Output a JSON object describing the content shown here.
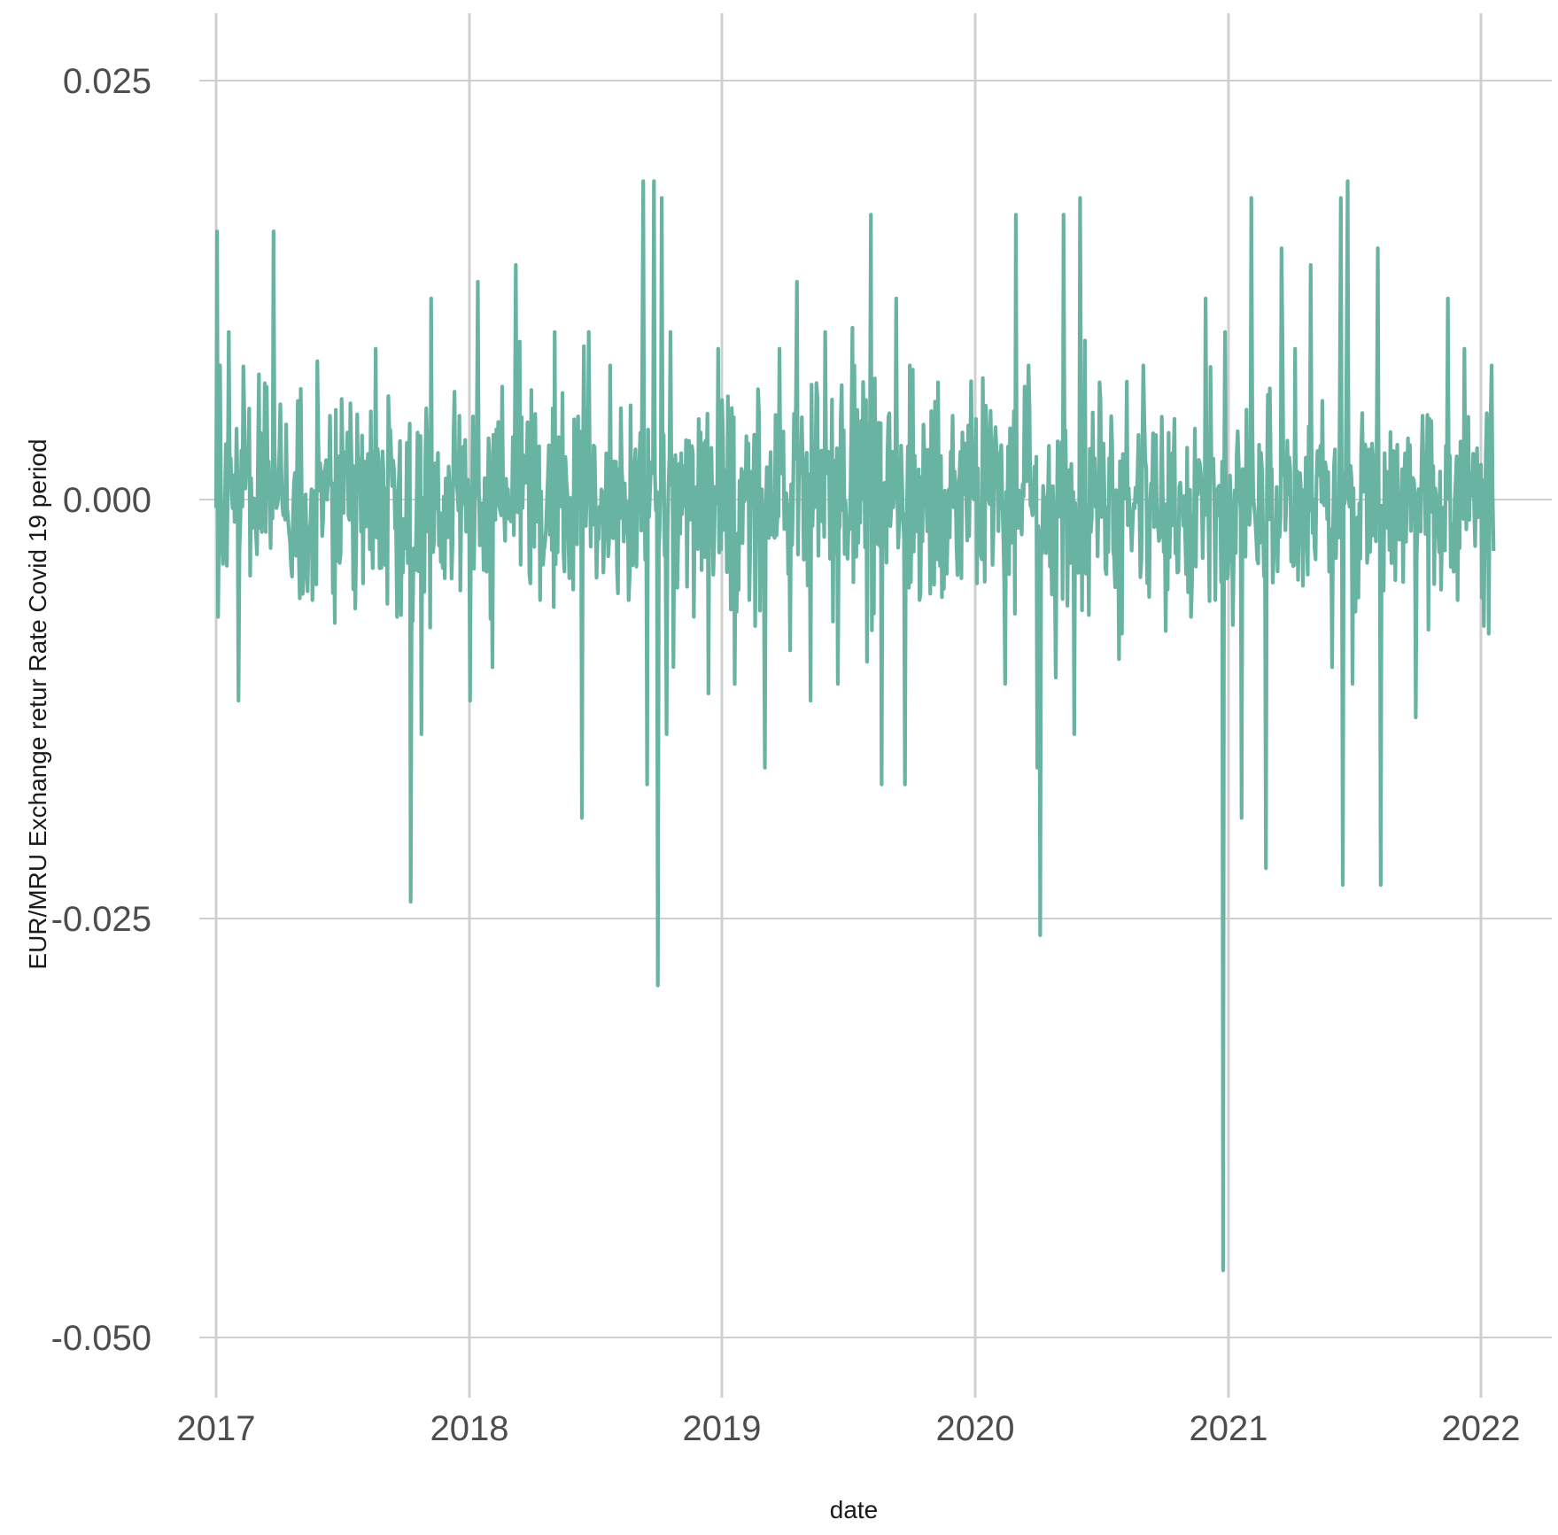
{
  "chart_data": {
    "type": "line",
    "title": "",
    "xlabel": "date",
    "ylabel": "EUR/MRU Exchange retur Rate Covid 19 period",
    "x_range": [
      "2017-01-01",
      "2022-01-20"
    ],
    "ylim": [
      -0.0535,
      0.0285
    ],
    "x_ticks": [
      "2017",
      "2018",
      "2019",
      "2020",
      "2021",
      "2022"
    ],
    "y_ticks": [
      "0.025",
      "0.000",
      "-0.025",
      "-0.050"
    ],
    "y_tick_values": [
      0.025,
      0.0,
      -0.025,
      -0.05
    ],
    "grid": true,
    "legend": "none",
    "line_color": "#69b3a2",
    "series": [
      {
        "date": [
          "2017-01-03",
          "2017-01-05",
          "2017-01-07",
          "2017-01-20",
          "2017-02-03",
          "2017-02-12",
          "2017-03-25",
          "2017-05-21",
          "2017-06-15",
          "2017-07-02",
          "2017-08-02",
          "2017-08-20",
          "2017-09-20",
          "2017-10-10",
          "2017-10-20",
          "2017-10-25",
          "2017-11-08",
          "2017-11-23",
          "2017-12-19",
          "2018-01-04",
          "2018-01-15",
          "2018-02-05",
          "2018-03-10",
          "2018-03-31",
          "2018-04-15",
          "2018-05-06",
          "2018-06-14",
          "2018-06-24",
          "2018-07-24",
          "2018-08-20",
          "2018-09-10",
          "2018-09-16",
          "2018-09-26",
          "2018-10-02",
          "2018-10-07",
          "2018-10-14",
          "2018-10-20",
          "2018-11-22",
          "2018-12-27",
          "2019-02-10",
          "2019-03-05",
          "2019-03-26",
          "2019-04-11",
          "2019-04-20",
          "2019-05-10",
          "2019-05-31",
          "2019-06-18",
          "2019-07-12",
          "2019-08-05",
          "2019-08-21",
          "2019-09-10",
          "2019-09-23",
          "2019-10-01",
          "2019-10-15",
          "2019-11-10",
          "2019-12-01",
          "2020-01-05",
          "2020-02-15",
          "2020-03-01",
          "2020-03-20",
          "2020-04-01",
          "2020-04-05",
          "2020-05-09",
          "2020-05-25",
          "2020-06-02",
          "2020-06-30",
          "2020-08-01",
          "2020-09-01",
          "2020-11-10",
          "2020-12-01",
          "2020-12-15",
          "2020-12-25",
          "2020-12-29",
          "2021-01-22",
          "2021-02-05",
          "2021-02-25",
          "2021-03-20",
          "2021-04-09",
          "2021-05-01",
          "2021-06-01",
          "2021-06-14",
          "2021-06-17",
          "2021-06-23",
          "2021-07-01",
          "2021-08-06",
          "2021-08-10",
          "2021-09-30",
          "2021-10-10",
          "2021-11-15",
          "2021-11-29",
          "2021-12-09",
          "2022-01-13",
          "2022-01-17"
        ],
        "value": [
          0.016,
          -0.007,
          0.008,
          0.01,
          -0.012,
          0.005,
          0.016,
          -0.006,
          0.005,
          0.006,
          -0.005,
          0.009,
          -0.007,
          -0.024,
          0.004,
          -0.014,
          0.012,
          -0.003,
          0.005,
          -0.012,
          0.013,
          -0.01,
          0.014,
          -0.005,
          -0.006,
          0.01,
          -0.019,
          0.01,
          0.008,
          -0.006,
          0.019,
          -0.017,
          0.019,
          -0.029,
          0.018,
          -0.014,
          0.01,
          -0.007,
          0.009,
          -0.006,
          -0.016,
          0.009,
          -0.009,
          0.013,
          -0.012,
          0.01,
          -0.011,
          0.008,
          0.017,
          -0.017,
          0.012,
          -0.017,
          0.008,
          -0.006,
          0.007,
          0.005,
          -0.005,
          -0.011,
          0.017,
          0.008,
          -0.016,
          -0.026,
          0.017,
          -0.014,
          0.018,
          0.007,
          -0.008,
          0.008,
          -0.007,
          0.012,
          -0.006,
          -0.046,
          0.01,
          -0.019,
          0.018,
          -0.022,
          0.015,
          0.009,
          0.014,
          -0.01,
          0.018,
          -0.023,
          0.019,
          -0.011,
          0.015,
          -0.023,
          -0.013,
          0.005,
          0.012,
          -0.006,
          0.009,
          -0.008,
          0.008
        ]
      }
    ]
  }
}
